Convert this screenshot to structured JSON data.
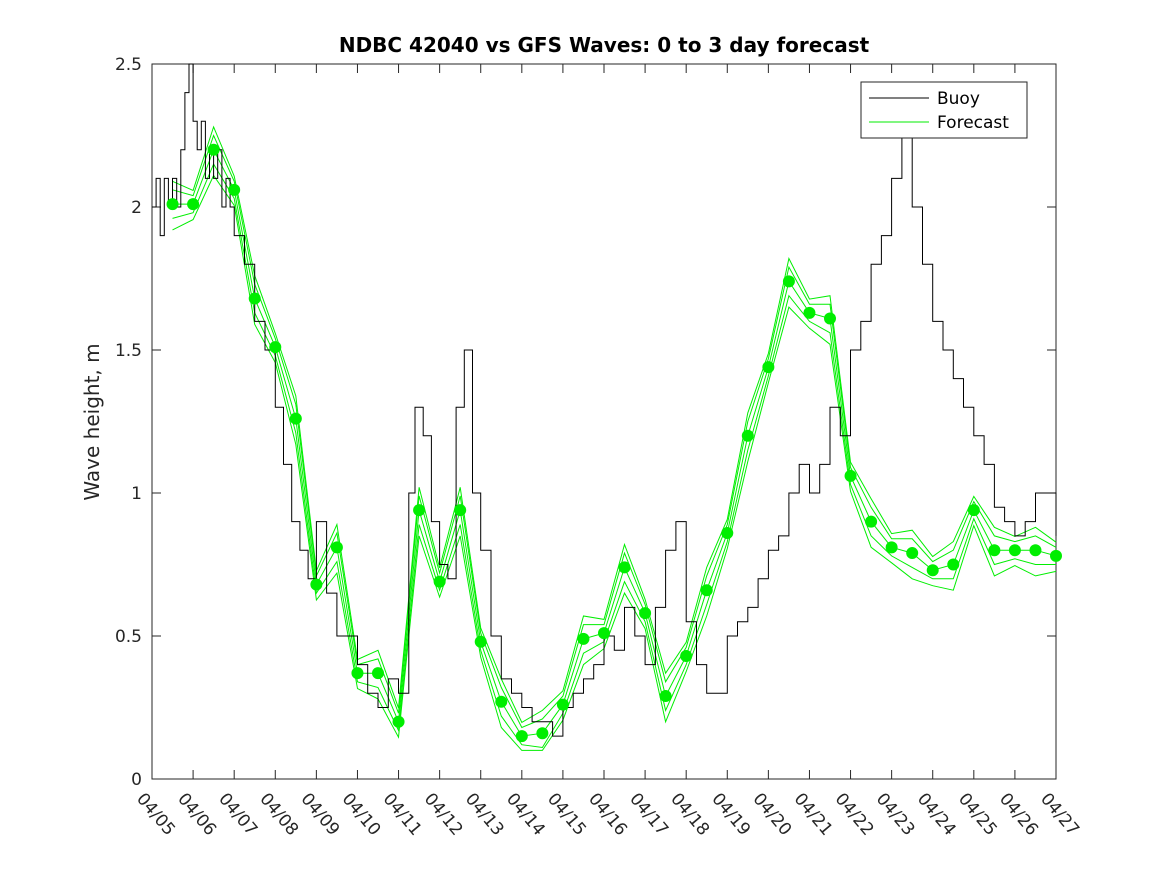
{
  "chart_data": {
    "type": "line",
    "title": "NDBC 42040 vs GFS Waves: 0 to 3 day forecast",
    "xlabel": "",
    "ylabel": "Wave height, m",
    "ylim": [
      0,
      2.5
    ],
    "yticks": [
      "0",
      "0.5",
      "1",
      "1.5",
      "2",
      "2.5"
    ],
    "xticks": [
      "04/05",
      "04/06",
      "04/07",
      "04/08",
      "04/09",
      "04/10",
      "04/11",
      "04/12",
      "04/13",
      "04/14",
      "04/15",
      "04/16",
      "04/17",
      "04/18",
      "04/19",
      "04/20",
      "04/21",
      "04/22",
      "04/23",
      "04/24",
      "04/25",
      "04/26",
      "04/27"
    ],
    "grid": false,
    "legend_position": "top-right",
    "colors": {
      "buoy": "#000000",
      "forecast": "#00ee00"
    },
    "series": [
      {
        "name": "Buoy",
        "x_days": [
          0,
          0.1,
          0.2,
          0.3,
          0.4,
          0.5,
          0.6,
          0.7,
          0.8,
          0.9,
          1,
          1.1,
          1.2,
          1.3,
          1.4,
          1.5,
          1.6,
          1.7,
          1.8,
          1.9,
          2,
          2.25,
          2.5,
          2.75,
          3,
          3.2,
          3.4,
          3.6,
          3.8,
          4,
          4.25,
          4.5,
          4.75,
          5,
          5.25,
          5.5,
          5.75,
          6,
          6.25,
          6.4,
          6.6,
          6.8,
          7,
          7.2,
          7.4,
          7.6,
          7.8,
          8,
          8.25,
          8.5,
          8.75,
          9,
          9.25,
          9.5,
          9.75,
          10,
          10.25,
          10.5,
          10.75,
          11,
          11.25,
          11.5,
          11.75,
          12,
          12.25,
          12.5,
          12.75,
          13,
          13.25,
          13.5,
          13.75,
          14,
          14.25,
          14.5,
          14.75,
          15,
          15.25,
          15.5,
          15.75,
          16,
          16.25,
          16.5,
          16.75,
          17,
          17.25,
          17.5,
          17.75,
          18,
          18.25,
          18.5,
          18.75,
          19,
          19.25,
          19.5,
          19.75,
          20,
          20.25,
          20.5,
          20.75,
          21,
          21.25,
          21.5,
          21.75,
          22
        ],
        "values": [
          2.0,
          2.1,
          1.9,
          2.1,
          2.0,
          2.1,
          2.0,
          2.2,
          2.4,
          2.5,
          2.3,
          2.2,
          2.3,
          2.1,
          2.2,
          2.1,
          2.2,
          2.0,
          2.1,
          2.0,
          1.9,
          1.8,
          1.6,
          1.5,
          1.3,
          1.1,
          0.9,
          0.8,
          0.7,
          0.9,
          0.65,
          0.5,
          0.5,
          0.4,
          0.3,
          0.25,
          0.35,
          0.3,
          1.0,
          1.3,
          1.2,
          0.9,
          0.75,
          0.7,
          1.3,
          1.5,
          1.0,
          0.8,
          0.5,
          0.35,
          0.3,
          0.25,
          0.2,
          0.2,
          0.15,
          0.25,
          0.3,
          0.35,
          0.4,
          0.5,
          0.45,
          0.6,
          0.5,
          0.4,
          0.6,
          0.8,
          0.9,
          0.55,
          0.4,
          0.3,
          0.3,
          0.5,
          0.55,
          0.6,
          0.7,
          0.8,
          0.85,
          1.0,
          1.1,
          1.0,
          1.1,
          1.3,
          1.2,
          1.5,
          1.6,
          1.8,
          1.9,
          2.1,
          2.3,
          2.0,
          1.8,
          1.6,
          1.5,
          1.4,
          1.3,
          1.2,
          1.1,
          0.95,
          0.9,
          0.85,
          0.9,
          1.0,
          1.0,
          0.85
        ]
      },
      {
        "name": "Forecast",
        "x_days": [
          0.5,
          1,
          1.5,
          2,
          2.5,
          3,
          3.5,
          4,
          4.5,
          5,
          5.5,
          6,
          6.5,
          7,
          7.5,
          8,
          8.5,
          9,
          9.5,
          10,
          10.5,
          11,
          11.5,
          12,
          12.5,
          13,
          13.5,
          14,
          14.5,
          15,
          15.5,
          16,
          16.5,
          17,
          17.5,
          18,
          18.5,
          19,
          19.5,
          20,
          20.5,
          21,
          21.5,
          22
        ],
        "values": [
          2.01,
          2.01,
          2.2,
          2.06,
          1.68,
          1.51,
          1.26,
          0.68,
          0.81,
          0.37,
          0.37,
          0.2,
          0.94,
          0.69,
          0.94,
          0.48,
          0.27,
          0.15,
          0.16,
          0.26,
          0.49,
          0.51,
          0.74,
          0.58,
          0.29,
          0.43,
          0.66,
          0.86,
          1.2,
          1.44,
          1.74,
          1.63,
          1.61,
          1.06,
          0.9,
          0.81,
          0.79,
          0.73,
          0.75,
          0.94,
          0.8,
          0.8,
          0.8,
          0.78
        ]
      }
    ]
  }
}
